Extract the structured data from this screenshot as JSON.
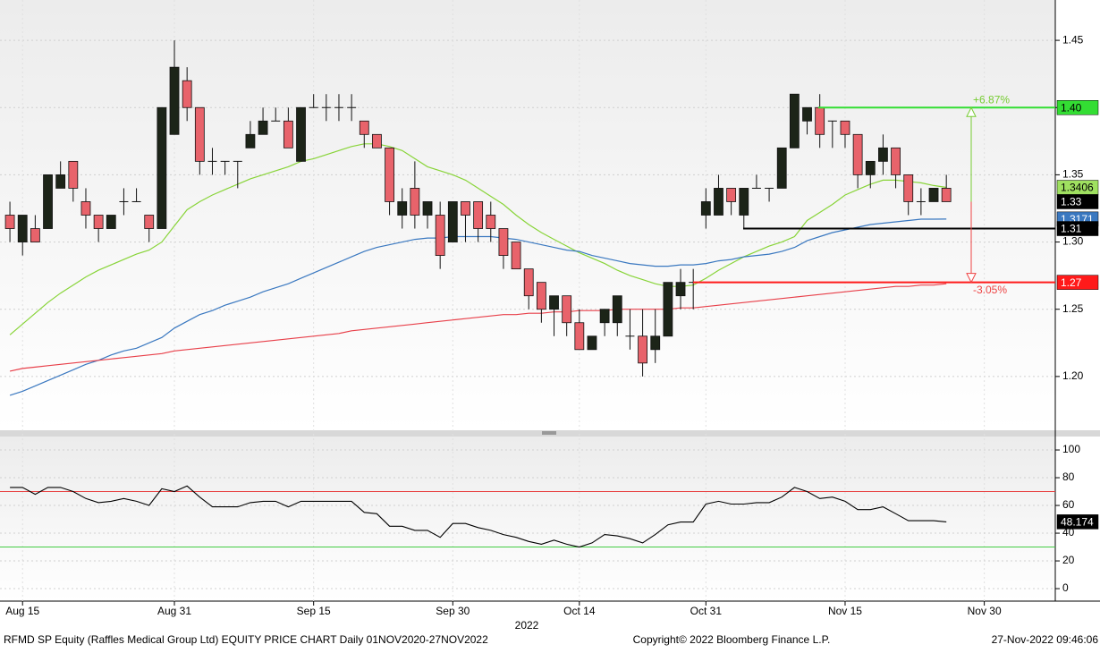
{
  "chart_data": [
    {
      "type": "candlestick",
      "categories": [
        null,
        "Aug 15",
        null,
        null,
        null,
        null,
        null,
        null,
        null,
        null,
        null,
        null,
        null,
        "Aug 31",
        null,
        null,
        null,
        null,
        null,
        null,
        null,
        null,
        null,
        null,
        "Sep 15",
        null,
        null,
        null,
        null,
        null,
        null,
        null,
        null,
        null,
        null,
        "Sep 30",
        null,
        null,
        null,
        null,
        null,
        null,
        null,
        null,
        null,
        "Oct 14",
        null,
        null,
        null,
        null,
        null,
        null,
        null,
        null,
        null,
        "Oct 31",
        null,
        null,
        null,
        null,
        null,
        null,
        null,
        null,
        null,
        null,
        "Nov 15",
        null,
        null,
        null,
        null,
        null,
        null,
        null,
        null,
        null,
        null,
        "Nov 30"
      ],
      "year_label": "2022",
      "open": [
        1.32,
        1.3,
        1.31,
        1.31,
        1.34,
        1.36,
        1.33,
        1.32,
        1.31,
        1.33,
        1.33,
        1.32,
        1.31,
        1.38,
        1.42,
        1.4,
        1.36,
        1.36,
        1.36,
        1.37,
        1.38,
        1.39,
        1.39,
        1.36,
        1.4,
        1.4,
        1.4,
        1.4,
        1.39,
        1.38,
        1.37,
        1.32,
        1.34,
        1.32,
        1.32,
        1.3,
        1.33,
        1.33,
        1.32,
        1.31,
        1.3,
        1.28,
        1.27,
        1.25,
        1.26,
        1.24,
        1.22,
        1.24,
        1.24,
        1.23,
        1.23,
        1.22,
        1.23,
        1.26,
        1.27,
        1.32,
        1.32,
        1.34,
        1.32,
        1.34,
        1.34,
        1.34,
        1.37,
        1.39,
        1.4,
        1.39,
        1.39,
        1.38,
        1.35,
        1.36,
        1.37,
        1.35,
        1.33,
        1.33,
        1.34,
        null,
        null,
        null
      ],
      "high": [
        1.33,
        1.32,
        1.32,
        1.35,
        1.36,
        1.36,
        1.34,
        1.32,
        1.32,
        1.34,
        1.34,
        1.32,
        1.4,
        1.45,
        1.43,
        1.4,
        1.37,
        1.36,
        1.36,
        1.39,
        1.4,
        1.4,
        1.4,
        1.4,
        1.41,
        1.41,
        1.41,
        1.41,
        1.39,
        1.38,
        1.37,
        1.34,
        1.36,
        1.33,
        1.33,
        1.33,
        1.33,
        1.33,
        1.33,
        1.31,
        1.3,
        1.28,
        1.27,
        1.26,
        1.26,
        1.25,
        1.23,
        1.25,
        1.26,
        1.25,
        1.25,
        1.25,
        1.27,
        1.28,
        1.28,
        1.34,
        1.35,
        1.34,
        1.34,
        1.35,
        1.34,
        1.37,
        1.41,
        1.4,
        1.41,
        1.39,
        1.39,
        1.38,
        1.36,
        1.38,
        1.37,
        1.35,
        1.34,
        1.34,
        1.35,
        null,
        null,
        null
      ],
      "low": [
        1.3,
        1.29,
        1.3,
        1.31,
        1.34,
        1.33,
        1.31,
        1.3,
        1.31,
        1.32,
        1.33,
        1.3,
        1.31,
        1.38,
        1.39,
        1.35,
        1.35,
        1.35,
        1.34,
        1.37,
        1.38,
        1.39,
        1.37,
        1.36,
        1.4,
        1.39,
        1.39,
        1.39,
        1.37,
        1.37,
        1.32,
        1.31,
        1.31,
        1.31,
        1.28,
        1.3,
        1.3,
        1.3,
        1.3,
        1.28,
        1.28,
        1.25,
        1.24,
        1.23,
        1.23,
        1.22,
        1.22,
        1.23,
        1.23,
        1.22,
        1.2,
        1.21,
        1.23,
        1.25,
        1.25,
        1.31,
        1.32,
        1.32,
        1.31,
        1.34,
        1.33,
        1.34,
        1.37,
        1.38,
        1.37,
        1.37,
        1.37,
        1.34,
        1.34,
        1.35,
        1.34,
        1.32,
        1.32,
        1.33,
        1.33,
        null,
        null,
        null
      ],
      "close": [
        1.31,
        1.32,
        1.3,
        1.35,
        1.35,
        1.34,
        1.32,
        1.31,
        1.32,
        1.33,
        1.33,
        1.31,
        1.4,
        1.43,
        1.4,
        1.36,
        1.36,
        1.36,
        1.36,
        1.38,
        1.39,
        1.39,
        1.37,
        1.4,
        1.4,
        1.4,
        1.4,
        1.4,
        1.38,
        1.37,
        1.33,
        1.33,
        1.32,
        1.33,
        1.29,
        1.33,
        1.32,
        1.31,
        1.31,
        1.29,
        1.28,
        1.26,
        1.25,
        1.26,
        1.24,
        1.22,
        1.23,
        1.25,
        1.26,
        1.23,
        1.21,
        1.23,
        1.27,
        1.27,
        1.27,
        1.33,
        1.34,
        1.33,
        1.34,
        1.34,
        1.34,
        1.37,
        1.41,
        1.4,
        1.38,
        1.39,
        1.38,
        1.35,
        1.36,
        1.37,
        1.35,
        1.33,
        1.33,
        1.34,
        1.33,
        null,
        null,
        null
      ],
      "up_color": "#1c2418",
      "down_color": "#e8636b",
      "series": [
        {
          "color": "#88d438",
          "values": [
            1.231,
            1.239,
            1.247,
            1.255,
            1.262,
            1.268,
            1.274,
            1.279,
            1.283,
            1.287,
            1.291,
            1.294,
            1.3,
            1.312,
            1.324,
            1.33,
            1.335,
            1.339,
            1.343,
            1.347,
            1.35,
            1.353,
            1.356,
            1.36,
            1.362,
            1.365,
            1.368,
            1.371,
            1.373,
            1.373,
            1.371,
            1.368,
            1.362,
            1.356,
            1.353,
            1.35,
            1.346,
            1.34,
            1.334,
            1.328,
            1.32,
            1.313,
            1.307,
            1.302,
            1.297,
            1.292,
            1.288,
            1.284,
            1.279,
            1.275,
            1.272,
            1.269,
            1.267,
            1.267,
            1.268,
            1.273,
            1.279,
            1.284,
            1.289,
            1.293,
            1.297,
            1.3,
            1.304,
            1.316,
            1.322,
            1.328,
            1.335,
            1.339,
            1.343,
            1.346,
            1.346,
            1.345,
            1.344,
            1.342,
            1.3406,
            null,
            null,
            null
          ],
          "label_bg": "#9fe060"
        },
        {
          "color": "#3a78c0",
          "values": [
            1.186,
            1.189,
            1.193,
            1.197,
            1.201,
            1.205,
            1.209,
            1.212,
            1.216,
            1.219,
            1.221,
            1.225,
            1.229,
            1.236,
            1.241,
            1.246,
            1.249,
            1.253,
            1.256,
            1.259,
            1.263,
            1.266,
            1.269,
            1.273,
            1.277,
            1.281,
            1.285,
            1.289,
            1.293,
            1.296,
            1.298,
            1.3,
            1.302,
            1.303,
            1.303,
            1.304,
            1.304,
            1.304,
            1.304,
            1.303,
            1.302,
            1.3,
            1.298,
            1.296,
            1.294,
            1.293,
            1.29,
            1.288,
            1.286,
            1.284,
            1.283,
            1.282,
            1.282,
            1.283,
            1.283,
            1.284,
            1.286,
            1.287,
            1.289,
            1.29,
            1.291,
            1.293,
            1.296,
            1.301,
            1.304,
            1.307,
            1.309,
            1.311,
            1.313,
            1.314,
            1.315,
            1.316,
            1.317,
            1.317,
            1.3171,
            null,
            null,
            null
          ],
          "label_bg": "#3a78c0"
        },
        {
          "color": "#e8404a",
          "values": [
            1.204,
            1.206,
            1.207,
            1.208,
            1.209,
            1.21,
            1.211,
            1.212,
            1.213,
            1.214,
            1.215,
            1.216,
            1.217,
            1.219,
            1.22,
            1.221,
            1.222,
            1.223,
            1.224,
            1.225,
            1.226,
            1.227,
            1.228,
            1.229,
            1.23,
            1.231,
            1.232,
            1.234,
            1.235,
            1.236,
            1.237,
            1.238,
            1.239,
            1.24,
            1.241,
            1.242,
            1.243,
            1.244,
            1.245,
            1.246,
            1.246,
            1.247,
            1.247,
            1.248,
            1.248,
            1.249,
            1.249,
            1.249,
            1.25,
            1.25,
            1.25,
            1.25,
            1.25,
            1.251,
            1.251,
            1.252,
            1.253,
            1.254,
            1.255,
            1.256,
            1.257,
            1.258,
            1.259,
            1.26,
            1.261,
            1.262,
            1.263,
            1.264,
            1.265,
            1.266,
            1.267,
            1.267,
            1.268,
            1.268,
            1.269,
            null,
            null,
            null
          ]
        }
      ],
      "last_close_label": "1.33",
      "levels": [
        {
          "value": 1.4,
          "label": "1.40",
          "color": "#33dd33"
        },
        {
          "value": 1.31,
          "color": "#000000"
        },
        {
          "value": 1.27,
          "color": "#ff1a1a"
        }
      ],
      "measure": {
        "up": "+6.87%",
        "down": "-3.05%",
        "up_color": "#77cc33",
        "down_color": "#ee4444"
      },
      "ylim": [
        1.16,
        1.48
      ],
      "yticks": [
        {
          "value": 1.2,
          "label": "1.20"
        },
        {
          "value": 1.25,
          "label": "1.25"
        },
        {
          "value": 1.3,
          "label": "1.30"
        },
        {
          "value": 1.35,
          "label": "1.35"
        },
        {
          "value": 1.4,
          "label": "1.40"
        },
        {
          "value": 1.45,
          "label": "1.45"
        }
      ],
      "grid": true
    },
    {
      "type": "line",
      "series": [
        {
          "color": "#000000",
          "values": [
            73,
            73,
            68,
            73,
            73,
            70,
            65,
            62,
            63,
            65,
            63,
            60,
            72,
            70,
            74,
            66,
            59,
            59,
            59,
            62,
            63,
            63,
            59,
            63,
            63,
            63,
            63,
            63,
            55,
            54,
            45,
            45,
            42,
            42,
            37,
            47,
            47,
            44,
            42,
            39,
            37,
            34,
            32,
            35,
            32,
            30,
            33,
            39,
            38,
            36,
            33,
            39,
            46,
            48,
            48,
            61,
            63,
            61,
            61,
            62,
            62,
            66,
            73,
            70,
            65,
            66,
            63,
            57,
            57,
            59,
            54,
            49,
            49,
            49,
            48.174,
            null,
            null,
            null
          ]
        }
      ],
      "ref_lines": [
        {
          "value": 70,
          "color": "#e84040"
        },
        {
          "value": 30,
          "color": "#44cc44"
        }
      ],
      "ylim": [
        -9,
        109.7
      ],
      "yticks": [
        0,
        20,
        40,
        60,
        80,
        100
      ],
      "grid": true
    }
  ],
  "footer": {
    "left": "RFMD SP Equity (Raffles Medical Group Ltd) EQUITY PRICE CHART  Daily 01NOV2020-27NOV2022",
    "center": "Copyright© 2022 Bloomberg Finance L.P.",
    "right": "27-Nov-2022 09:46:06"
  }
}
